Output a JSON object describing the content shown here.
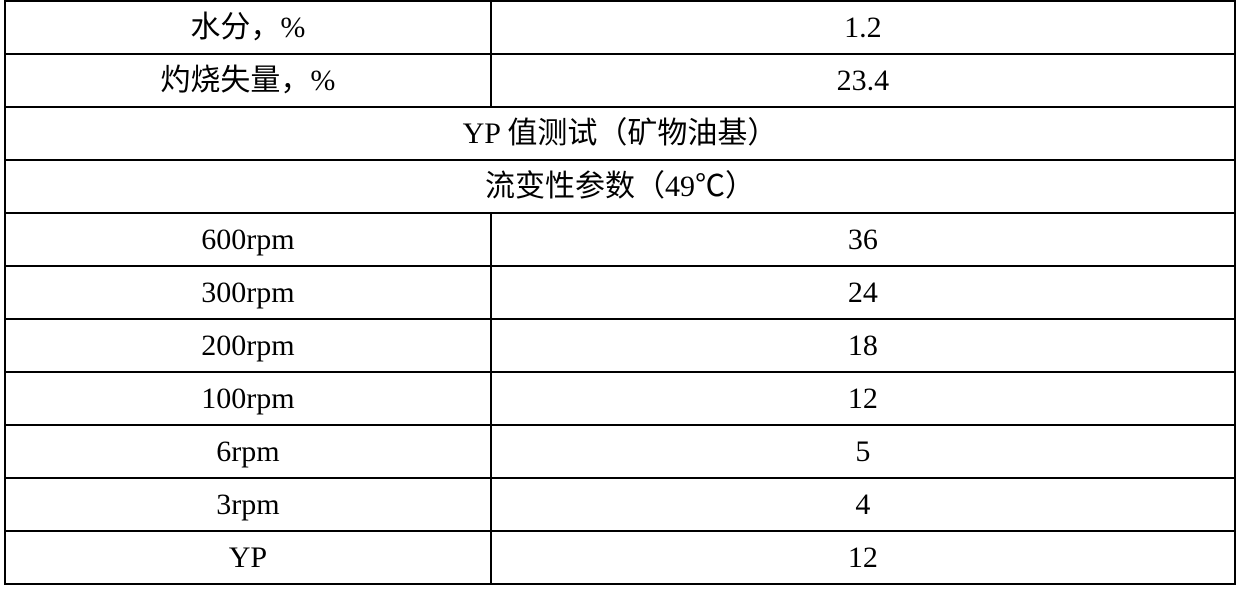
{
  "table": {
    "columns": {
      "left_width_pct": 39.5,
      "right_width_pct": 60.5
    },
    "border_color": "#000000",
    "background_color": "#ffffff",
    "text_color": "#000000",
    "font_size_pt": 22,
    "rows": [
      {
        "type": "data",
        "label": "水分，%",
        "value": "1.2"
      },
      {
        "type": "data",
        "label": "灼烧失量，%",
        "value": "23.4"
      },
      {
        "type": "header",
        "text": "YP 值测试（矿物油基）"
      },
      {
        "type": "header",
        "text": "流变性参数（49℃）"
      },
      {
        "type": "data",
        "label": "600rpm",
        "value": "36"
      },
      {
        "type": "data",
        "label": "300rpm",
        "value": "24"
      },
      {
        "type": "data",
        "label": "200rpm",
        "value": "18"
      },
      {
        "type": "data",
        "label": "100rpm",
        "value": "12"
      },
      {
        "type": "data",
        "label": "6rpm",
        "value": "5"
      },
      {
        "type": "data",
        "label": "3rpm",
        "value": "4"
      },
      {
        "type": "data",
        "label": "YP",
        "value": "12"
      }
    ]
  }
}
